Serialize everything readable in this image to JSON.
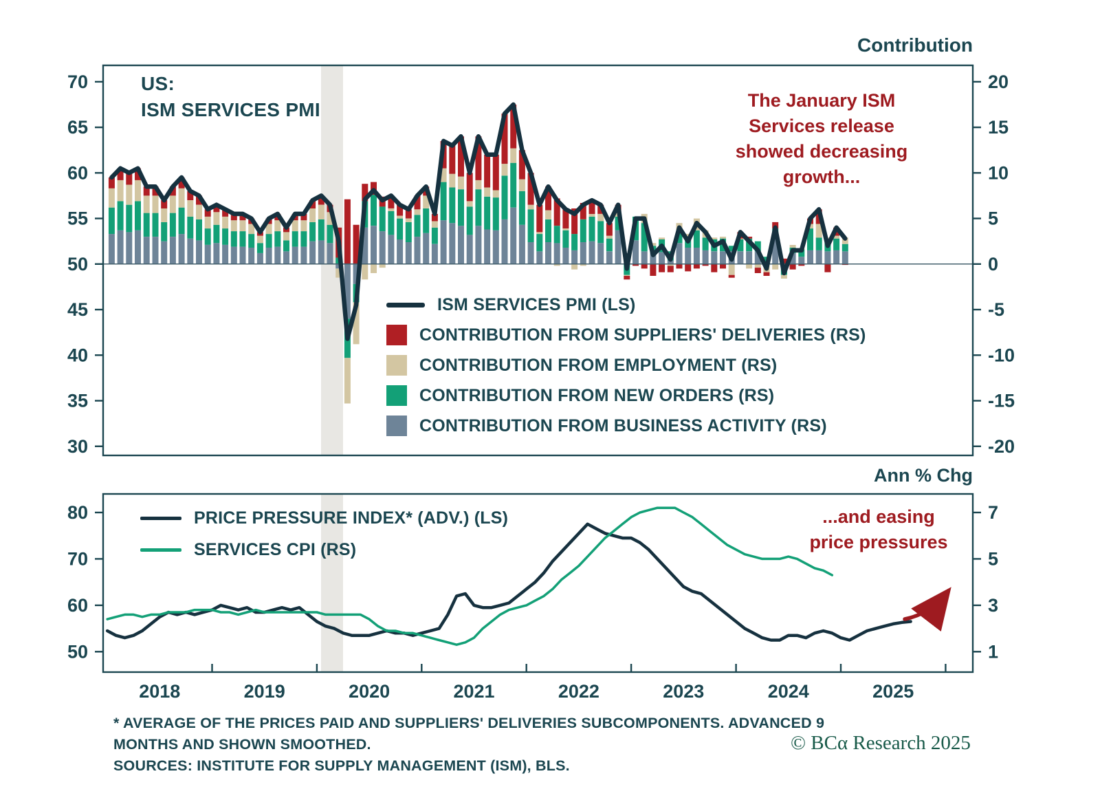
{
  "labels": {
    "contribution": "Contribution",
    "ann_pct_chg": "Ann % Chg"
  },
  "top_chart": {
    "title_lines": [
      "US:",
      "ISM SERVICES PMI"
    ],
    "annotation_lines": [
      "The January ISM",
      "Services release",
      "showed decreasing",
      "growth..."
    ],
    "legend": [
      {
        "type": "line",
        "color": "#16313f",
        "label": "ISM SERVICES PMI (LS)"
      },
      {
        "type": "box",
        "color": "#b01f24",
        "label": "CONTRIBUTION FROM SUPPLIERS' DELIVERIES (RS)"
      },
      {
        "type": "box",
        "color": "#d3c6a2",
        "label": "CONTRIBUTION FROM EMPLOYMENT (RS)"
      },
      {
        "type": "box",
        "color": "#13a077",
        "label": "CONTRIBUTION FROM NEW ORDERS (RS)"
      },
      {
        "type": "box",
        "color": "#6e8498",
        "label": "CONTRIBUTION FROM BUSINESS ACTIVITY (RS)"
      }
    ]
  },
  "bottom_chart": {
    "annotation_lines": [
      "...and easing",
      "price pressures"
    ],
    "legend": [
      {
        "type": "line",
        "color": "#16313f",
        "label": "PRICE PRESSURE INDEX* (ADV.) (LS)"
      },
      {
        "type": "line",
        "color": "#13a077",
        "label": "SERVICES CPI (RS)"
      }
    ]
  },
  "footnotes": {
    "lines": [
      "* AVERAGE OF THE PRICES PAID AND SUPPLIERS' DELIVERIES SUBCOMPONENTS. ADVANCED 9",
      "MONTHS AND SHOWN SMOOTHED.",
      "SOURCES: INSTITUTE FOR SUPPLY MANAGEMENT (ISM), BLS."
    ]
  },
  "copyright": "© BCα Research 2025",
  "chart_data": [
    {
      "type": "bar",
      "panel": "top",
      "title": "US: ISM SERVICES PMI",
      "x_start": "2018-01",
      "x_freq": "monthly",
      "left_axis": {
        "min": 29.0,
        "max": 71.8,
        "ticks": [
          70,
          65,
          60,
          55,
          50,
          45,
          40,
          35,
          30
        ]
      },
      "right_axis": {
        "title": "Contribution",
        "min": -21.0,
        "max": 21.8,
        "ticks": [
          20,
          15,
          10,
          5,
          0,
          -5,
          -10,
          -15,
          -20
        ]
      },
      "recession_band": {
        "from": 2020.04,
        "to": 2020.25,
        "color": "#e8e7e3"
      },
      "line_series": {
        "name": "ISM SERVICES PMI (LS)",
        "axis": "left",
        "color": "#16313f",
        "values": [
          59.5,
          60.5,
          60,
          60.5,
          58.5,
          58.5,
          57,
          58.5,
          59.5,
          58,
          57.5,
          56,
          56.5,
          56,
          55.5,
          55.5,
          55,
          53.5,
          55,
          55.5,
          54,
          55.5,
          55.5,
          57,
          57.5,
          56.5,
          52.5,
          41.8,
          45.5,
          57.1,
          58.1,
          57,
          57.5,
          56.5,
          56,
          57.5,
          58.5,
          55.5,
          63.5,
          63,
          64,
          60,
          64,
          62,
          62,
          66.5,
          67.5,
          62.5,
          60,
          56.5,
          58.5,
          57,
          56,
          55.5,
          56.5,
          57,
          56.5,
          54.5,
          56.5,
          49.5,
          55,
          55,
          51,
          52,
          50.5,
          54,
          52.5,
          54.5,
          53.5,
          52,
          52.5,
          50.5,
          53.5,
          52.5,
          51.5,
          49.5,
          54,
          49,
          51.5,
          51.5,
          55,
          56,
          52,
          54,
          52.8
        ]
      },
      "bar_series": [
        {
          "name": "CONTRIBUTION FROM BUSINESS ACTIVITY (RS)",
          "color": "#6e8498",
          "values": [
            3.3,
            3.7,
            3.5,
            3.7,
            3,
            3,
            2.5,
            3,
            3.3,
            2.8,
            2.6,
            2.1,
            2.3,
            2.1,
            1.9,
            1.9,
            1.8,
            1.2,
            1.8,
            1.9,
            1.4,
            1.9,
            1.9,
            2.5,
            2.6,
            2.3,
            -0.5,
            -6,
            -2.2,
            4,
            4.2,
            3.6,
            3.2,
            2.7,
            2.4,
            3,
            3.4,
            2.2,
            4.8,
            4.5,
            4.2,
            3.2,
            4.2,
            3.8,
            3.7,
            4.9,
            6.2,
            4.3,
            2.4,
            1.4,
            2.4,
            2.3,
            1.8,
            1.5,
            2.4,
            2.5,
            2.3,
            1.4,
            3.7,
            1.2,
            2.6,
            1.4,
            1.4,
            1.3,
            0.4,
            2.3,
            1.8,
            1.8,
            1.5,
            1.4,
            1.4,
            1.4,
            1.4,
            1.4,
            1.4,
            0.2,
            2.8,
            -0.4,
            1.2,
            0.8,
            1.5,
            1.5,
            1.4,
            1.5,
            1.4
          ]
        },
        {
          "name": "CONTRIBUTION FROM NEW ORDERS (RS)",
          "color": "#13a077",
          "values": [
            2.9,
            3.2,
            3,
            3.2,
            2.6,
            2.6,
            2.1,
            2.6,
            2.9,
            2.4,
            2.3,
            1.8,
            2,
            1.8,
            1.7,
            1.7,
            1.5,
            1.1,
            1.5,
            1.7,
            1.2,
            1.7,
            1.7,
            2.1,
            2.3,
            2,
            0.7,
            -4.3,
            -2,
            2.9,
            3.4,
            2.7,
            2.6,
            2.3,
            2.2,
            2.4,
            2.7,
            1.8,
            4.2,
            3.9,
            4,
            3.1,
            4,
            3.6,
            3.6,
            4.8,
            4.9,
            3.7,
            3.6,
            1.9,
            2.5,
            1.9,
            1.9,
            1.8,
            2.5,
            2.7,
            2.4,
            1.4,
            1.5,
            -1.2,
            2.6,
            3.1,
            0.6,
            1.4,
            1,
            1.4,
            1.2,
            1.9,
            1.4,
            1.3,
            1.4,
            0.6,
            1.3,
            1.4,
            1.1,
            0.6,
            1.1,
            -0.8,
            0.6,
            0.8,
            2.4,
            1.4,
            1.2,
            1.3,
            0.8
          ]
        },
        {
          "name": "CONTRIBUTION FROM EMPLOYMENT (RS)",
          "color": "#d3c6a2",
          "values": [
            2.1,
            2.3,
            2.2,
            2.3,
            1.9,
            1.9,
            1.5,
            1.9,
            2.1,
            1.8,
            1.6,
            1.3,
            1.4,
            1.3,
            1.2,
            1.2,
            1.1,
            0.8,
            1.1,
            1.2,
            0.9,
            1.2,
            1.2,
            1.5,
            1.6,
            1.4,
            -1,
            -5,
            -4.6,
            -1.7,
            -1,
            -0.4,
            0.3,
            0.3,
            0.4,
            0.6,
            1.4,
            0.7,
            1.5,
            1.5,
            1.4,
            0.6,
            1,
            1,
            0.8,
            1.3,
            1.6,
            1.3,
            0.5,
            0.2,
            1,
            -0.2,
            0.2,
            -0.6,
            -0.2,
            0.3,
            0.8,
            0.3,
            0.4,
            -0.1,
            0,
            1,
            0.3,
            0.2,
            -0.2,
            0.8,
            0.3,
            1.3,
            0.8,
            0.2,
            0.2,
            -1.2,
            0.1,
            -0.5,
            -0.4,
            -0.9,
            -0.6,
            -0.4,
            0.3,
            0.1,
            0.5,
            1.5,
            0.3,
            0.3,
            0.7
          ]
        },
        {
          "name": "CONTRIBUTION FROM SUPPLIERS' DELIVERIES (RS)",
          "color": "#b01f24",
          "values": [
            1.2,
            1.3,
            1.3,
            1.3,
            1,
            1,
            0.9,
            1,
            1.2,
            1,
            1,
            0.8,
            0.8,
            0.8,
            0.7,
            0.7,
            0.6,
            0.4,
            0.6,
            0.7,
            0.5,
            0.7,
            0.7,
            0.9,
            1,
            0.8,
            3.3,
            7.1,
            4.3,
            1.9,
            1.4,
            1.1,
            1.4,
            1.2,
            1,
            1.5,
            1,
            0.8,
            3,
            3.1,
            4.4,
            3.1,
            4.8,
            3.6,
            3.9,
            5.5,
            4.8,
            3.2,
            3.5,
            3,
            2.6,
            3,
            2.1,
            2.8,
            1.8,
            1.5,
            1,
            1.4,
            0.9,
            -0.4,
            -0.2,
            -0.5,
            -1.3,
            -0.9,
            -0.7,
            -0.5,
            -0.8,
            -0.5,
            -0.2,
            -0.9,
            -0.5,
            -0.3,
            0.7,
            0.2,
            -0.6,
            -0.4,
            0.7,
            0.6,
            -0.6,
            -0.2,
            0.6,
            1.6,
            -0.9,
            0.9,
            -0.1
          ]
        }
      ]
    },
    {
      "type": "line",
      "panel": "bottom",
      "left_axis": {
        "min": 45.6,
        "max": 84.0,
        "ticks": [
          80,
          70,
          60,
          50
        ]
      },
      "right_axis": {
        "title": "Ann % Chg",
        "ticks": [
          7,
          5,
          3,
          1
        ]
      },
      "x_axis": {
        "year_labels": [
          2018,
          2019,
          2020,
          2021,
          2022,
          2023,
          2024,
          2025
        ],
        "tick_years": [
          2019,
          2020,
          2021,
          2022,
          2023,
          2024,
          2025,
          2026
        ]
      },
      "recession_band": {
        "from": 2020.04,
        "to": 2020.25,
        "color": "#e8e7e3"
      },
      "series": [
        {
          "name": "PRICE PRESSURE INDEX* (ADV.) (LS)",
          "axis": "left",
          "color": "#16313f",
          "x_start_year": 2018.0,
          "values": [
            54.5,
            53.5,
            53,
            53.5,
            54.5,
            56,
            57.5,
            58.5,
            58,
            58.5,
            58,
            58.5,
            59,
            60,
            59.5,
            59,
            59.5,
            58.5,
            58.5,
            59,
            59.5,
            59,
            59.5,
            58,
            56.5,
            55.5,
            55,
            54,
            53.5,
            53.5,
            53.5,
            54,
            54.5,
            54,
            54,
            53.5,
            54,
            54.5,
            55,
            58,
            62,
            62.5,
            60,
            59.5,
            59.5,
            60,
            60.5,
            62,
            63.5,
            65,
            67,
            69.5,
            71.5,
            73.5,
            75.5,
            77.5,
            76.5,
            75.5,
            75,
            74.5,
            74.5,
            73.5,
            72,
            70,
            68,
            66,
            64,
            63,
            62.5,
            61,
            59.5,
            58,
            56.5,
            55,
            54,
            53,
            52.5,
            52.5,
            53.5,
            53.5,
            53,
            54,
            54.5,
            54,
            53,
            52.5,
            53.5,
            54.5,
            55,
            55.5,
            56,
            56.3,
            56.5
          ]
        },
        {
          "name": "SERVICES CPI (RS)",
          "axis": "right",
          "color": "#13a077",
          "x_start_year": 2018.0,
          "values": [
            2.4,
            2.5,
            2.6,
            2.6,
            2.5,
            2.6,
            2.6,
            2.7,
            2.7,
            2.7,
            2.8,
            2.8,
            2.8,
            2.7,
            2.7,
            2.6,
            2.7,
            2.8,
            2.7,
            2.7,
            2.7,
            2.7,
            2.7,
            2.7,
            2.7,
            2.6,
            2.6,
            2.6,
            2.6,
            2.6,
            2.4,
            2.1,
            1.9,
            1.9,
            1.8,
            1.8,
            1.7,
            1.6,
            1.5,
            1.4,
            1.3,
            1.4,
            1.6,
            2,
            2.3,
            2.6,
            2.8,
            2.9,
            3,
            3.2,
            3.4,
            3.7,
            4.1,
            4.4,
            4.7,
            5.1,
            5.5,
            5.9,
            6.2,
            6.5,
            6.8,
            7,
            7.1,
            7.2,
            7.2,
            7.2,
            7,
            6.8,
            6.5,
            6.2,
            5.9,
            5.6,
            5.4,
            5.2,
            5.1,
            5,
            5,
            5,
            5.1,
            5,
            4.8,
            4.6,
            4.5,
            4.3
          ]
        }
      ],
      "trend_arrow": {
        "color": "#9e1b20"
      }
    }
  ]
}
